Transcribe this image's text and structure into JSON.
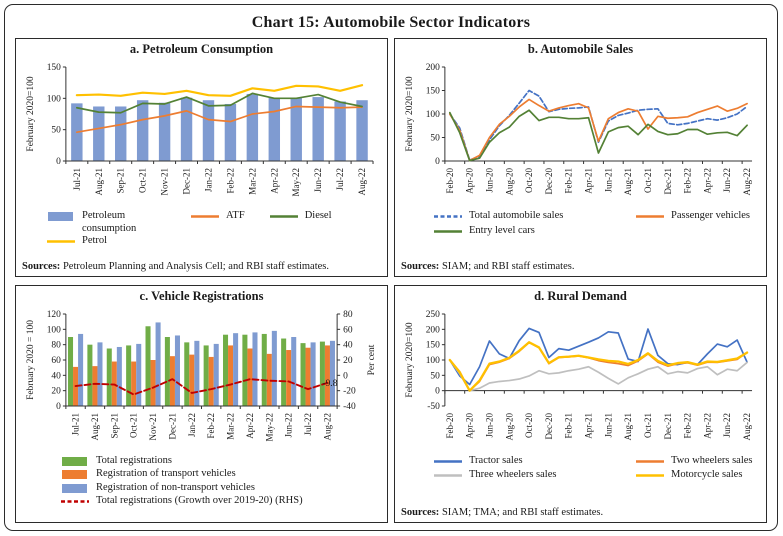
{
  "title": "Chart 15: Automobile Sector Indicators",
  "panels": {
    "a": {
      "sources_label": "Sources:",
      "sources_text": "Petroleum Planning and Analysis Cell; and RBI staff estimates."
    },
    "b": {
      "sources_label": "Sources:",
      "sources_text": "SIAM; and RBI staff estimates."
    },
    "d": {
      "sources_label": "Sources:",
      "sources_text": "SIAM; TMA; and RBI staff estimates."
    }
  },
  "chart_data": [
    {
      "type": "bar",
      "title": "a. Petroleum Consumption",
      "legend_layout": "row",
      "categories": [
        "Jul-21",
        "Aug-21",
        "Sep-21",
        "Oct-21",
        "Nov-21",
        "Dec-21",
        "Jan-22",
        "Feb-22",
        "Mar-22",
        "Apr-22",
        "May-22",
        "Jun-22",
        "Jul-22",
        "Aug-22"
      ],
      "y_axis": {
        "min": 0,
        "max": 150,
        "ticks": [
          0,
          50,
          100,
          150
        ],
        "title": "February 2020=100"
      },
      "grid": false,
      "series": [
        {
          "name": "Petroleum consumption",
          "type": "bar",
          "color": "#7F9BD1",
          "values": [
            92,
            87,
            87,
            97,
            93,
            101,
            97,
            91,
            107,
            101,
            101,
            102,
            95,
            97
          ]
        },
        {
          "name": "ATF",
          "type": "line",
          "color": "#ED7D31",
          "values": [
            46,
            52,
            58,
            66,
            72,
            80,
            66,
            63,
            75,
            79,
            87,
            86,
            85,
            86
          ]
        },
        {
          "name": "Diesel",
          "type": "line",
          "color": "#538135",
          "values": [
            85,
            78,
            77,
            92,
            91,
            102,
            88,
            89,
            108,
            100,
            100,
            106,
            94,
            87
          ]
        },
        {
          "name": "Petrol",
          "type": "line",
          "color": "#FFC000",
          "width": 2.2,
          "values": [
            105,
            106,
            104,
            109,
            107,
            112,
            105,
            104,
            116,
            112,
            120,
            119,
            112,
            121
          ]
        }
      ]
    },
    {
      "type": "line",
      "title": "b. Automobile Sales",
      "legend_layout": "grid2",
      "categories": [
        "Feb-20",
        "Mar-20",
        "Apr-20",
        "May-20",
        "Jun-20",
        "Jul-20",
        "Aug-20",
        "Sep-20",
        "Oct-20",
        "Nov-20",
        "Dec-20",
        "Jan-21",
        "Feb-21",
        "Mar-21",
        "Apr-21",
        "May-21",
        "Jun-21",
        "Jul-21",
        "Aug-21",
        "Sep-21",
        "Oct-21",
        "Nov-21",
        "Dec-21",
        "Jan-22",
        "Feb-22",
        "Mar-22",
        "Apr-22",
        "May-22",
        "Jun-22",
        "Jul-22",
        "Aug-22"
      ],
      "x_label_every": 2,
      "y_axis": {
        "min": 0,
        "max": 200,
        "ticks": [
          0,
          50,
          100,
          150,
          200
        ],
        "title": "February 2020=100"
      },
      "grid": false,
      "series": [
        {
          "name": "Total automobile sales",
          "type": "line",
          "color": "#4472C4",
          "dash": "5,2.5",
          "values": [
            100,
            70,
            2,
            10,
            45,
            75,
            97,
            123,
            150,
            138,
            105,
            110,
            112,
            113,
            115,
            40,
            85,
            97,
            102,
            108,
            110,
            111,
            80,
            77,
            80,
            85,
            90,
            87,
            92,
            100,
            116
          ]
        },
        {
          "name": "Passenger vehicles",
          "type": "line",
          "color": "#ED7D31",
          "values": [
            100,
            65,
            1,
            12,
            50,
            78,
            95,
            115,
            131,
            118,
            106,
            113,
            118,
            122,
            113,
            42,
            90,
            103,
            111,
            106,
            68,
            95,
            91,
            92,
            94,
            103,
            110,
            117,
            106,
            112,
            122
          ]
        },
        {
          "name": "Entry level cars",
          "type": "line",
          "color": "#538135",
          "values": [
            103,
            60,
            1,
            6,
            40,
            60,
            72,
            95,
            108,
            86,
            93,
            93,
            90,
            90,
            92,
            17,
            62,
            71,
            74,
            56,
            78,
            63,
            56,
            58,
            67,
            67,
            57,
            60,
            61,
            54,
            76
          ]
        }
      ]
    },
    {
      "type": "bar",
      "title": "c. Vehicle Registrations",
      "legend_layout": "column",
      "categories": [
        "Jul-21",
        "Aug-21",
        "Sep-21",
        "Oct-21",
        "Nov-21",
        "Dec-21",
        "Jan-22",
        "Feb-22",
        "Mar-22",
        "Apr-22",
        "May-22",
        "Jun-22",
        "Jul-22",
        "Aug-22"
      ],
      "y_axis": {
        "min": 0,
        "max": 120,
        "ticks": [
          0,
          20,
          40,
          60,
          80,
          100,
          120
        ],
        "title": "February 2020 = 100"
      },
      "y2_axis": {
        "min": -40,
        "max": 80,
        "ticks": [
          -40,
          -20,
          0,
          20,
          40,
          60,
          80
        ],
        "title": "Per cent"
      },
      "grid": false,
      "series": [
        {
          "name": "Total registrations",
          "type": "bar",
          "color": "#70AD47",
          "values": [
            90,
            80,
            75,
            79,
            104,
            90,
            83,
            79,
            93,
            93,
            94,
            88,
            82,
            84
          ]
        },
        {
          "name": "Registration of transport vehicles",
          "type": "bar",
          "color": "#ED7D31",
          "values": [
            51,
            52,
            58,
            58,
            60,
            65,
            67,
            64,
            79,
            75,
            68,
            73,
            76,
            79
          ]
        },
        {
          "name": "Registration of non-transport vehicles",
          "type": "bar",
          "color": "#7F9BD1",
          "values": [
            94,
            83,
            77,
            81,
            109,
            92,
            85,
            81,
            95,
            96,
            98,
            90,
            83,
            85
          ]
        },
        {
          "name": "Total registrations (Growth over 2019-20) (RHS)",
          "type": "line",
          "axis": "y2",
          "color": "#C00000",
          "dash": "6,3",
          "width": 1.9,
          "values": [
            -14,
            -11,
            -12,
            -25,
            -16,
            -5,
            -23,
            -18,
            -12,
            -5,
            -7,
            -8,
            -18,
            -9.8
          ]
        }
      ],
      "annotations": [
        {
          "text": "-9.8",
          "series_index": 3,
          "point_index": 13
        }
      ]
    },
    {
      "type": "line",
      "title": "d. Rural Demand",
      "legend_layout": "grid2",
      "categories": [
        "Feb-20",
        "Mar-20",
        "Apr-20",
        "May-20",
        "Jun-20",
        "Jul-20",
        "Aug-20",
        "Sep-20",
        "Oct-20",
        "Nov-20",
        "Dec-20",
        "Jan-21",
        "Feb-21",
        "Mar-21",
        "Apr-21",
        "May-21",
        "Jun-21",
        "Jul-21",
        "Aug-21",
        "Sep-21",
        "Oct-21",
        "Nov-21",
        "Dec-21",
        "Jan-22",
        "Feb-22",
        "Mar-22",
        "Apr-22",
        "May-22",
        "Jun-22",
        "Jul-22",
        "Aug-22"
      ],
      "x_label_every": 2,
      "y_axis": {
        "min": -50,
        "max": 250,
        "ticks": [
          -50,
          0,
          50,
          100,
          150,
          200,
          250
        ],
        "title": "February 2020=100"
      },
      "x_axis_at_zero": true,
      "grid": false,
      "series": [
        {
          "name": "Tractor sales",
          "type": "line",
          "color": "#4472C4",
          "values": [
            100,
            48,
            20,
            78,
            162,
            120,
            105,
            163,
            203,
            190,
            108,
            137,
            132,
            145,
            158,
            172,
            192,
            188,
            103,
            95,
            201,
            115,
            88,
            85,
            92,
            85,
            120,
            152,
            143,
            165,
            93
          ]
        },
        {
          "name": "Two wheelers sales",
          "type": "line",
          "color": "#ED7D31",
          "values": [
            100,
            62,
            0,
            30,
            85,
            93,
            105,
            128,
            157,
            140,
            88,
            108,
            110,
            113,
            107,
            98,
            92,
            88,
            82,
            97,
            120,
            93,
            80,
            88,
            91,
            83,
            93,
            92,
            97,
            102,
            125
          ]
        },
        {
          "name": "Three wheelers sales",
          "type": "line",
          "color": "#BFBFBF",
          "values": [
            100,
            55,
            0,
            8,
            25,
            30,
            33,
            38,
            48,
            65,
            55,
            58,
            65,
            70,
            78,
            60,
            40,
            22,
            42,
            55,
            70,
            78,
            55,
            62,
            58,
            72,
            78,
            52,
            70,
            65,
            92
          ]
        },
        {
          "name": "Motorcycle sales",
          "type": "line",
          "color": "#FFC000",
          "width": 2.3,
          "values": [
            100,
            60,
            0,
            33,
            88,
            95,
            107,
            130,
            158,
            141,
            90,
            109,
            111,
            114,
            108,
            102,
            97,
            95,
            87,
            100,
            122,
            97,
            83,
            90,
            93,
            85,
            95,
            94,
            99,
            105,
            124
          ]
        }
      ]
    }
  ]
}
